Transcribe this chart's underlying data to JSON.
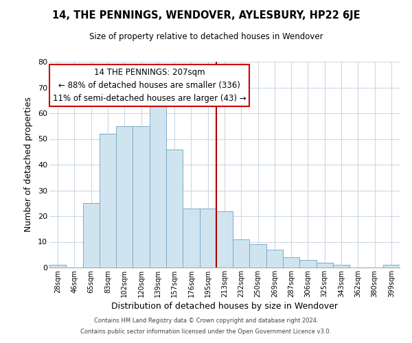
{
  "title": "14, THE PENNINGS, WENDOVER, AYLESBURY, HP22 6JE",
  "subtitle": "Size of property relative to detached houses in Wendover",
  "xlabel": "Distribution of detached houses by size in Wendover",
  "ylabel": "Number of detached properties",
  "bar_color": "#d0e4f0",
  "bar_edge_color": "#7aaac8",
  "categories": [
    "28sqm",
    "46sqm",
    "65sqm",
    "83sqm",
    "102sqm",
    "120sqm",
    "139sqm",
    "157sqm",
    "176sqm",
    "195sqm",
    "213sqm",
    "232sqm",
    "250sqm",
    "269sqm",
    "287sqm",
    "306sqm",
    "325sqm",
    "343sqm",
    "362sqm",
    "380sqm",
    "399sqm"
  ],
  "values": [
    1,
    0,
    25,
    52,
    55,
    55,
    63,
    46,
    23,
    23,
    22,
    11,
    9,
    7,
    4,
    3,
    2,
    1,
    0,
    0,
    1
  ],
  "ylim": [
    0,
    80
  ],
  "yticks": [
    0,
    10,
    20,
    30,
    40,
    50,
    60,
    70,
    80
  ],
  "vline_x_index": 9.5,
  "vline_color": "#aa0000",
  "annotation_line1": "14 THE PENNINGS: 207sqm",
  "annotation_line2": "← 88% of detached houses are smaller (336)",
  "annotation_line3": "11% of semi-detached houses are larger (43) →",
  "footer1": "Contains HM Land Registry data © Crown copyright and database right 2024.",
  "footer2": "Contains public sector information licensed under the Open Government Licence v3.0.",
  "background_color": "#ffffff",
  "grid_color": "#ccd8e4"
}
